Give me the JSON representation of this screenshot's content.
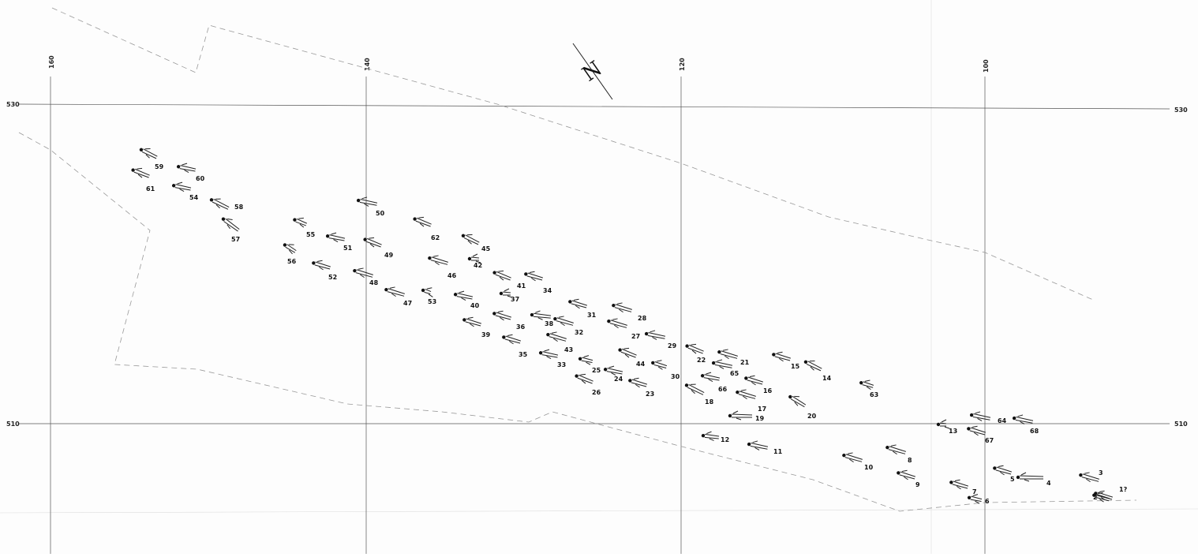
{
  "map": {
    "grid_x_labels": [
      "160",
      "140",
      "120",
      "100"
    ],
    "grid_y_labels": [
      "530",
      "510"
    ],
    "north_symbol": "N",
    "figures": [
      "1?",
      "2",
      "3",
      "4",
      "5",
      "6",
      "7",
      "8",
      "9",
      "10",
      "11",
      "12",
      "13",
      "14",
      "15",
      "16",
      "17",
      "18",
      "19",
      "20",
      "21",
      "22",
      "23",
      "24",
      "25",
      "26",
      "27",
      "28",
      "29",
      "30",
      "31",
      "32",
      "33",
      "34",
      "35",
      "36",
      "37",
      "38",
      "39",
      "40",
      "41",
      "42",
      "43",
      "44",
      "45",
      "46",
      "47",
      "48",
      "49",
      "50",
      "51",
      "52",
      "53",
      "54",
      "55",
      "56",
      "57",
      "58",
      "59",
      "60",
      "61",
      "62",
      "63",
      "64",
      "65",
      "66",
      "67",
      "68"
    ]
  }
}
